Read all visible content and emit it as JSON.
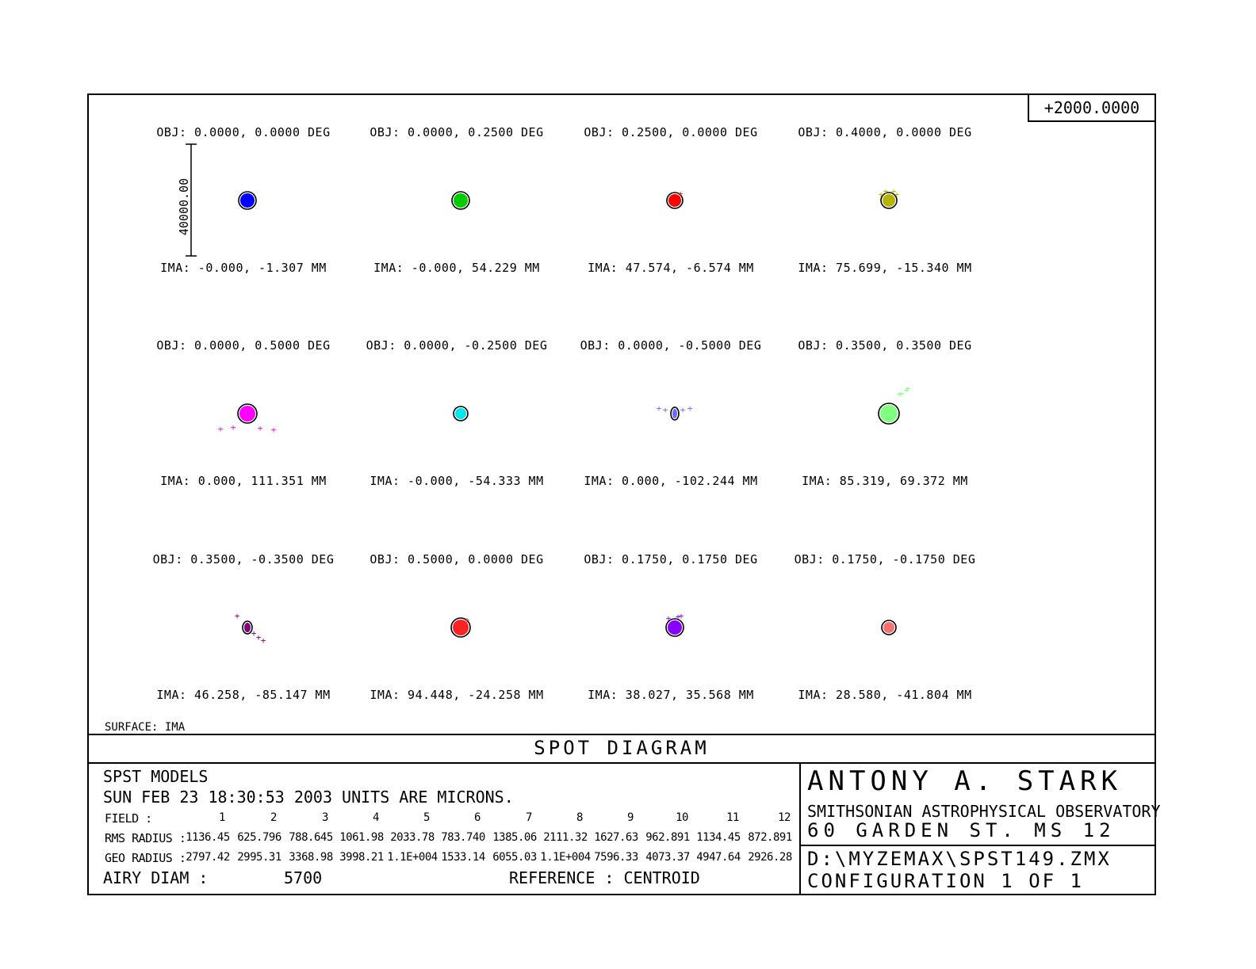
{
  "scale_value": "+2000.0000",
  "scale_bar_label": "40000.00",
  "surface": "SURFACE: IMA",
  "title": "SPOT DIAGRAM",
  "fields": [
    {
      "obj": "OBJ: 0.0000, 0.0000 DEG",
      "ima": "IMA: -0.000, -1.307 MM",
      "color": "#0000ff"
    },
    {
      "obj": "OBJ: 0.0000, 0.2500 DEG",
      "ima": "IMA: -0.000, 54.229 MM",
      "color": "#00cc00"
    },
    {
      "obj": "OBJ: 0.2500, 0.0000 DEG",
      "ima": "IMA: 47.574, -6.574 MM",
      "color": "#ff0000"
    },
    {
      "obj": "OBJ: 0.4000, 0.0000 DEG",
      "ima": "IMA: 75.699, -15.340 MM",
      "color": "#b3b300"
    },
    {
      "obj": "OBJ: 0.0000, 0.5000 DEG",
      "ima": "IMA: 0.000, 111.351 MM",
      "color": "#ff00ff"
    },
    {
      "obj": "OBJ: 0.0000, -0.2500 DEG",
      "ima": "IMA: -0.000, -54.333 MM",
      "color": "#00e5ee"
    },
    {
      "obj": "OBJ: 0.0000, -0.5000 DEG",
      "ima": "IMA: 0.000, -102.244 MM",
      "color": "#6a6aff"
    },
    {
      "obj": "OBJ: 0.3500, 0.3500 DEG",
      "ima": "IMA: 85.319, 69.372 MM",
      "color": "#80ff80"
    },
    {
      "obj": "OBJ: 0.3500, -0.3500 DEG",
      "ima": "IMA: 46.258, -85.147 MM",
      "color": "#800080"
    },
    {
      "obj": "OBJ: 0.5000, 0.0000 DEG",
      "ima": "IMA: 94.448, -24.258 MM",
      "color": "#ff2222"
    },
    {
      "obj": "OBJ: 0.1750, 0.1750 DEG",
      "ima": "IMA: 38.027, 35.568 MM",
      "color": "#8800ff"
    },
    {
      "obj": "OBJ: 0.1750, -0.1750 DEG",
      "ima": "IMA: 28.580, -41.804 MM",
      "color": "#ff7070"
    }
  ],
  "info": {
    "model": "SPST MODELS",
    "date_units": "SUN FEB 23 18:30:53 2003  UNITS ARE MICRONS.",
    "field_label": "FIELD    :",
    "field_numbers": [
      "1",
      "2",
      "3",
      "4",
      "5",
      "6",
      "7",
      "8",
      "9",
      "10",
      "11",
      "12"
    ],
    "rms_label": "RMS RADIUS :",
    "rms_values": [
      "1136.45",
      "625.796",
      "788.645",
      "1061.98",
      "2033.78",
      "783.740",
      "1385.06",
      "2111.32",
      "1627.63",
      "962.891",
      "1134.45",
      "872.891"
    ],
    "geo_label": "GEO RADIUS :",
    "geo_values": [
      "2797.42",
      "2995.31",
      "3368.98",
      "3998.21",
      "1.1E+004",
      "1533.14",
      "6055.03",
      "1.1E+004",
      "7596.33",
      "4073.37",
      "4947.64",
      "2926.28"
    ],
    "airy_label": "AIRY DIAM   :",
    "airy_value": "5700",
    "reference": "REFERENCE   : CENTROID"
  },
  "credits": {
    "author": "ANTONY A. STARK",
    "organization": "SMITHSONIAN ASTROPHYSICAL OBSERVATORY",
    "address": "60 GARDEN ST. MS 12",
    "file": "D:\\MYZEMAX\\SPST149.ZMX",
    "configuration": "CONFIGURATION  1  OF  1"
  }
}
